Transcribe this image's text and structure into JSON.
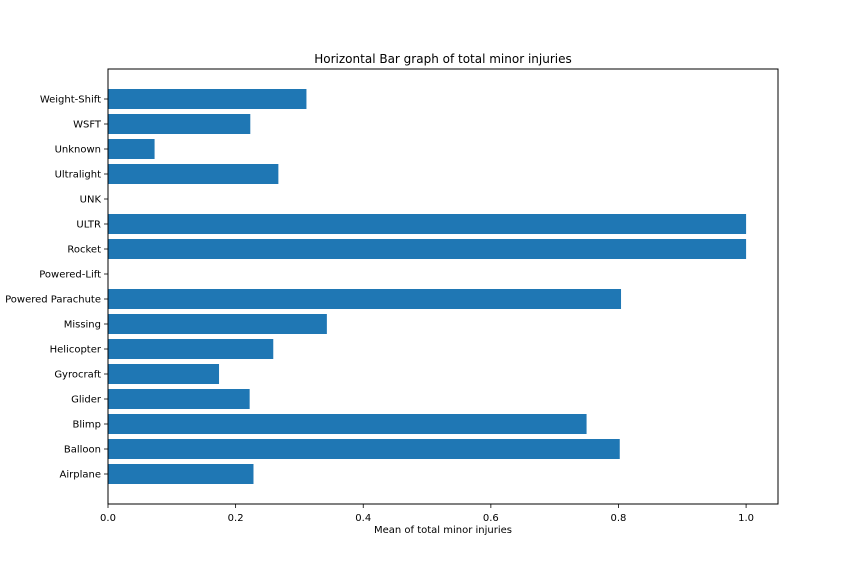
{
  "chart_data": {
    "type": "bar",
    "orientation": "horizontal",
    "title": "Horizontal Bar graph of total minor injuries",
    "xlabel": "Mean of total minor injuries",
    "ylabel": "",
    "xlim": [
      0,
      1.05
    ],
    "xticks": [
      0,
      0.2,
      0.4,
      0.6,
      0.8,
      1.0
    ],
    "xtick_labels": [
      "0.0",
      "0.2",
      "0.4",
      "0.6",
      "0.8",
      "1.0"
    ],
    "grid": false,
    "bar_color": "#1f77b4",
    "categories": [
      "Airplane",
      "Balloon",
      "Blimp",
      "Glider",
      "Gyrocraft",
      "Helicopter",
      "Missing",
      "Powered Parachute",
      "Powered-Lift",
      "Rocket",
      "ULTR",
      "UNK",
      "Ultralight",
      "Unknown",
      "WSFT",
      "Weight-Shift"
    ],
    "values": [
      0.228,
      0.802,
      0.75,
      0.222,
      0.174,
      0.259,
      0.343,
      0.804,
      0.0,
      1.0,
      1.0,
      0.0,
      0.267,
      0.073,
      0.223,
      0.311
    ]
  }
}
